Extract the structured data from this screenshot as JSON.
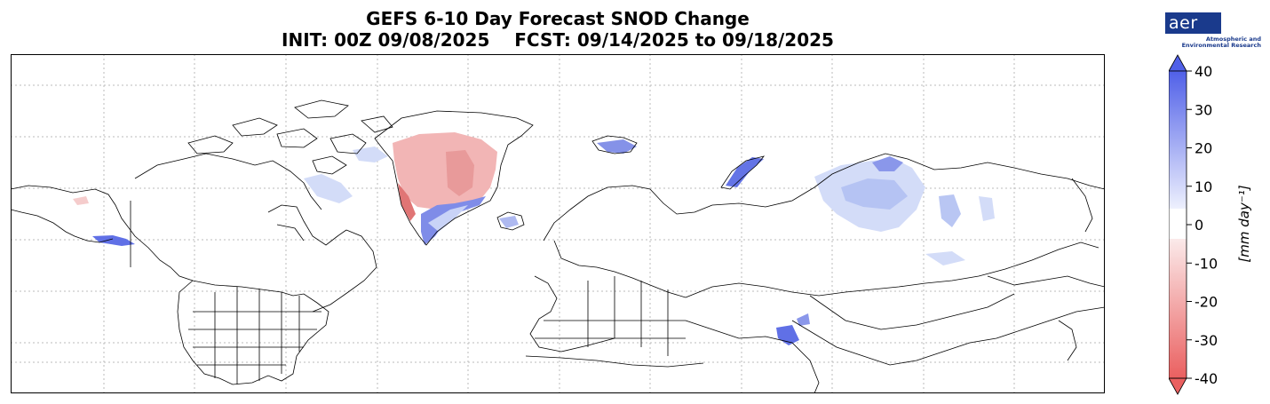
{
  "header": {
    "title_line1": "GEFS 6-10 Day Forecast SNOD Change",
    "title_line2": "INIT: 00Z 09/08/2025    FCST: 09/14/2025 to 09/18/2025"
  },
  "logo": {
    "name": "aer",
    "tagline_1": "Atmospheric and",
    "tagline_2": "Environmental Research",
    "brand_color": "#1a3a8c"
  },
  "colorbar": {
    "label": "[mm day⁻¹]",
    "ticks": [
      "40",
      "30",
      "20",
      "10",
      "0",
      "-10",
      "-20",
      "-30",
      "-40"
    ],
    "min": -40,
    "max": 40,
    "extend": "both",
    "positive_color": "#5060e8",
    "negative_color": "#e85a5a"
  },
  "map": {
    "projection": "equirectangular",
    "gridlines": "dotted",
    "regions": [
      {
        "name": "Greenland interior",
        "sign": "negative"
      },
      {
        "name": "Greenland east coast",
        "sign": "positive"
      },
      {
        "name": "Svalbard",
        "sign": "positive"
      },
      {
        "name": "Novaya Zemlya",
        "sign": "positive"
      },
      {
        "name": "Taymyr / Central Siberia",
        "sign": "positive"
      },
      {
        "name": "Alaska",
        "sign": "positive"
      },
      {
        "name": "Canadian Arctic Archipelago",
        "sign": "positive"
      },
      {
        "name": "Karakoram / Tibet",
        "sign": "positive"
      }
    ]
  }
}
